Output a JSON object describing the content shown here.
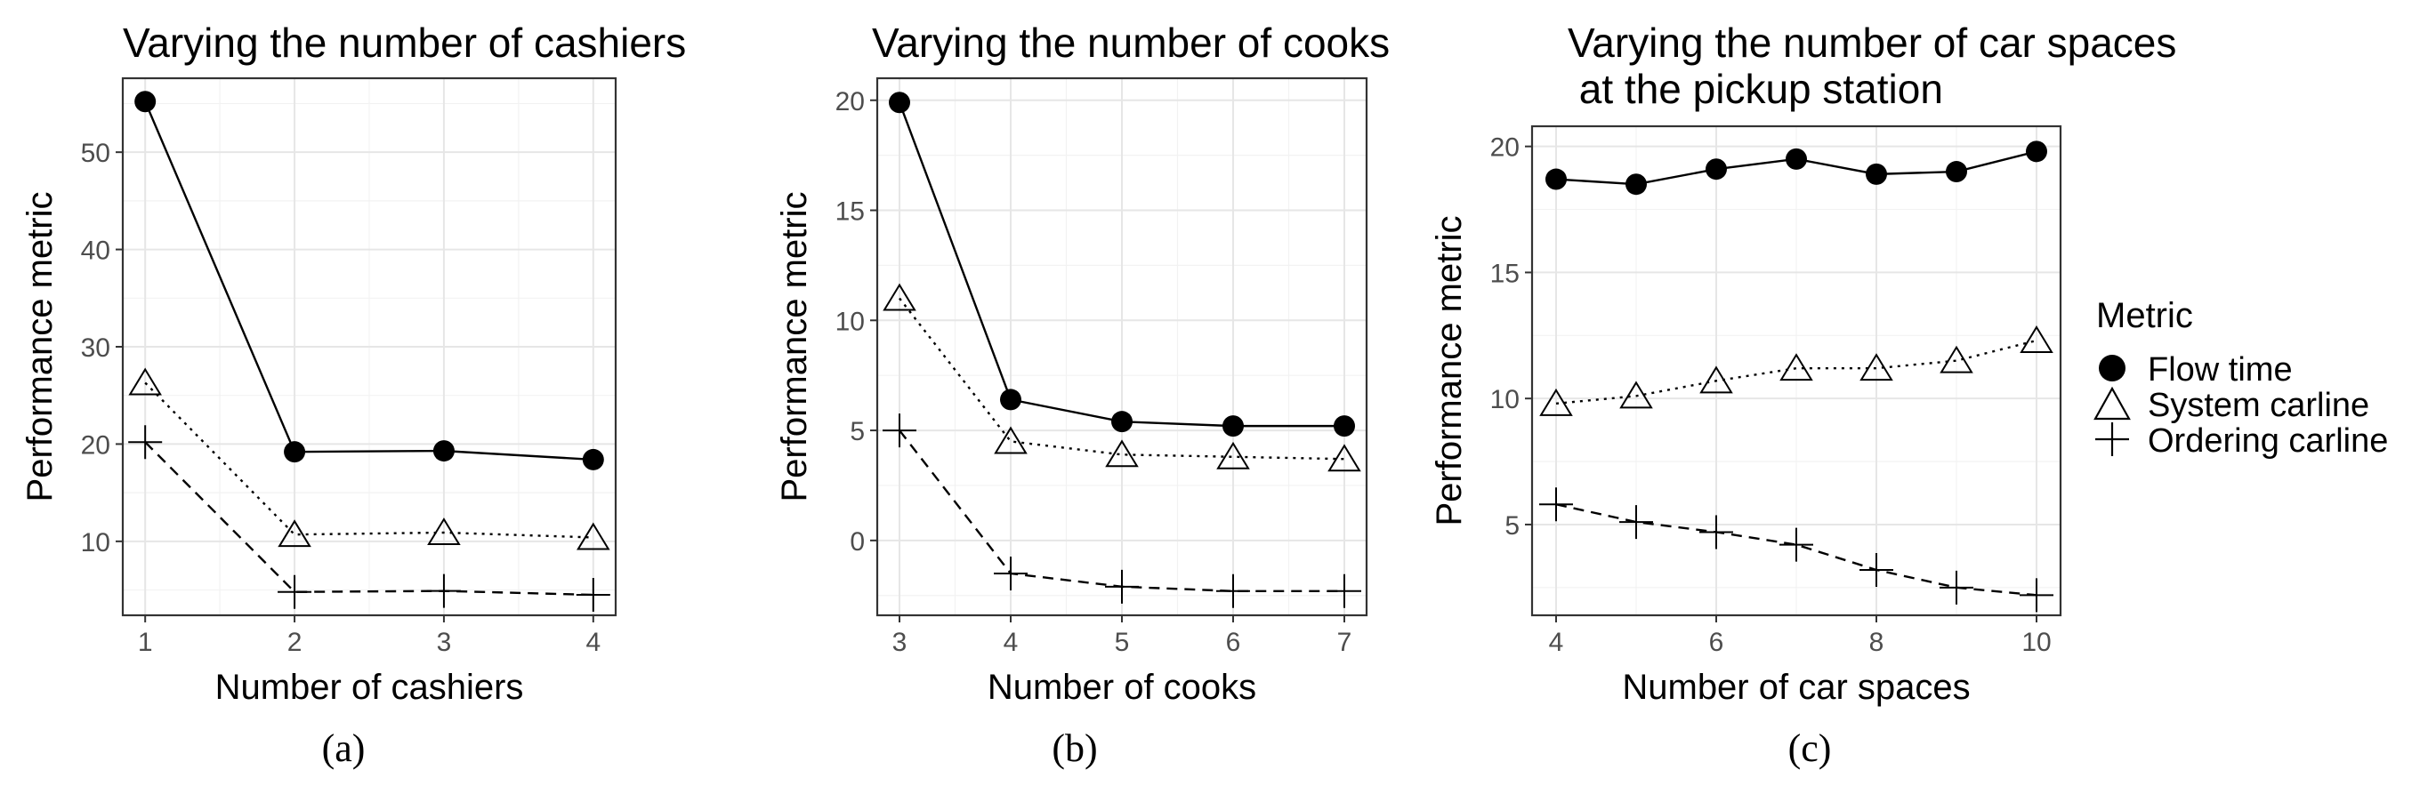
{
  "legend": {
    "title": "Metric",
    "items": [
      {
        "label": "Flow time",
        "marker": "filled-circle"
      },
      {
        "label": "System carline",
        "marker": "open-triangle"
      },
      {
        "label": "Ordering carline",
        "marker": "plus"
      }
    ]
  },
  "colors": {
    "line": "#000000",
    "grid_major": "#e6e6e6",
    "grid_minor": "#f2f2f2",
    "panel_border": "#333333",
    "tick_text": "#4d4d4d"
  },
  "chart_data": [
    {
      "type": "line",
      "caption": "(a)",
      "title": [
        "Varying the number of cashiers"
      ],
      "xlabel": "Number of cashiers",
      "ylabel": "Performance metric",
      "x": [
        1,
        2,
        3,
        4
      ],
      "xticks": [
        1,
        2,
        3,
        4
      ],
      "yticks": [
        10,
        20,
        30,
        40,
        50
      ],
      "xlim": [
        0.85,
        4.15
      ],
      "ylim": [
        2.4,
        57.6
      ],
      "grid": true,
      "series": [
        {
          "name": "Flow time",
          "marker": "filled-circle",
          "dash": "solid",
          "values": [
            55.2,
            19.2,
            19.3,
            18.4
          ]
        },
        {
          "name": "System carline",
          "marker": "open-triangle",
          "dash": "dotted",
          "values": [
            26.3,
            10.7,
            10.9,
            10.4
          ]
        },
        {
          "name": "Ordering carline",
          "marker": "plus",
          "dash": "dashed",
          "values": [
            20.2,
            4.8,
            4.9,
            4.5
          ]
        }
      ]
    },
    {
      "type": "line",
      "caption": "(b)",
      "title": [
        "Varying the number of cooks"
      ],
      "xlabel": "Number of cooks",
      "ylabel": "Performance metric",
      "x": [
        3,
        4,
        5,
        6,
        7
      ],
      "xticks": [
        3,
        4,
        5,
        6,
        7
      ],
      "yticks": [
        0,
        5,
        10,
        15,
        20
      ],
      "xlim": [
        2.8,
        7.2
      ],
      "ylim": [
        -3.4,
        21.0
      ],
      "grid": true,
      "series": [
        {
          "name": "Flow time",
          "marker": "filled-circle",
          "dash": "solid",
          "values": [
            19.9,
            6.4,
            5.4,
            5.2,
            5.2
          ]
        },
        {
          "name": "System carline",
          "marker": "open-triangle",
          "dash": "dotted",
          "values": [
            11.0,
            4.5,
            3.9,
            3.8,
            3.7
          ]
        },
        {
          "name": "Ordering carline",
          "marker": "plus",
          "dash": "dashed",
          "values": [
            5.0,
            -1.5,
            -2.1,
            -2.3,
            -2.3
          ]
        }
      ]
    },
    {
      "type": "line",
      "caption": "(c)",
      "title": [
        "Varying the number of car spaces",
        " at the pickup station"
      ],
      "xlabel": "Number of car spaces",
      "ylabel": "Performance metric",
      "x": [
        4,
        5,
        6,
        7,
        8,
        9,
        10
      ],
      "xticks": [
        4,
        6,
        8,
        10
      ],
      "yticks": [
        5,
        10,
        15,
        20
      ],
      "xlim": [
        3.7,
        10.3
      ],
      "ylim": [
        1.4,
        20.8
      ],
      "grid": true,
      "series": [
        {
          "name": "Flow time",
          "marker": "filled-circle",
          "dash": "solid",
          "values": [
            18.7,
            18.5,
            19.1,
            19.5,
            18.9,
            19.0,
            19.8
          ]
        },
        {
          "name": "System carline",
          "marker": "open-triangle",
          "dash": "dotted",
          "values": [
            9.8,
            10.1,
            10.7,
            11.2,
            11.2,
            11.5,
            12.3
          ]
        },
        {
          "name": "Ordering carline",
          "marker": "plus",
          "dash": "dashed",
          "values": [
            5.8,
            5.1,
            4.7,
            4.2,
            3.2,
            2.5,
            2.2
          ]
        }
      ]
    }
  ]
}
